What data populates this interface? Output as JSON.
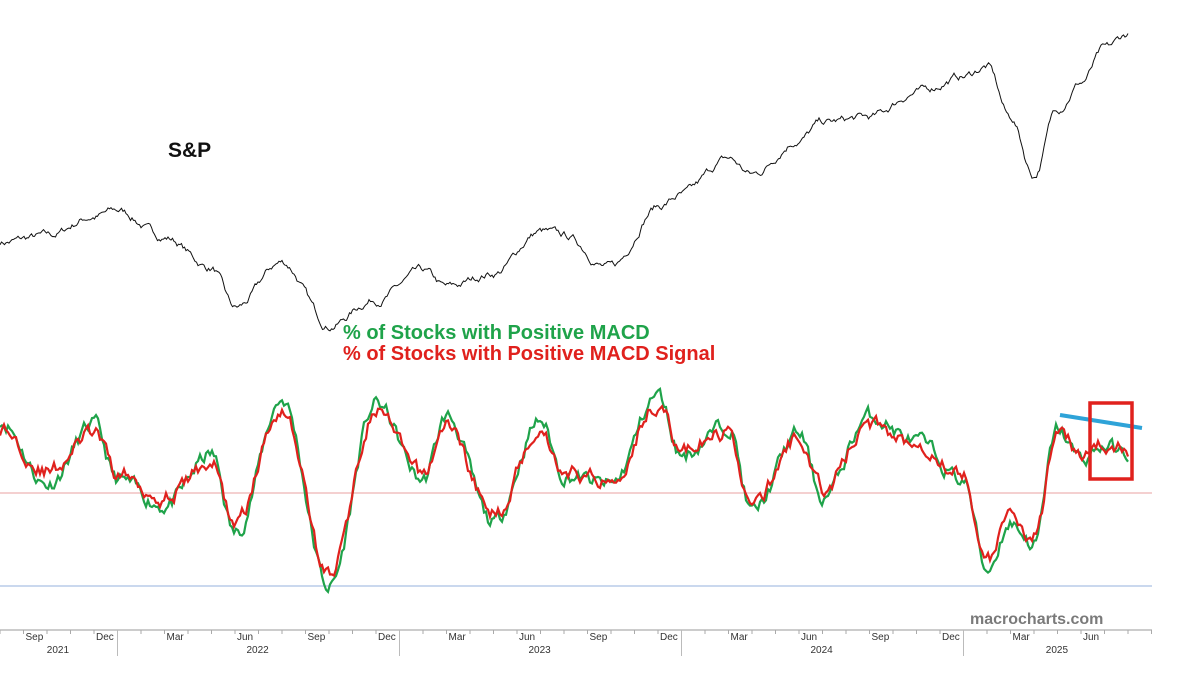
{
  "chart_data": [
    {
      "type": "line",
      "annotation": "S&P",
      "x": [
        "2021-08",
        "2021-10",
        "2021-12",
        "2022-01",
        "2022-03",
        "2022-05",
        "2022-06",
        "2022-08",
        "2022-10",
        "2022-12",
        "2023-02",
        "2023-03",
        "2023-05",
        "2023-07",
        "2023-08",
        "2023-10",
        "2023-12",
        "2024-01",
        "2024-03",
        "2024-04",
        "2024-06",
        "2024-07",
        "2024-09",
        "2024-11",
        "2025-01",
        "2025-02",
        "2025-03",
        "2025-04",
        "2025-05",
        "2025-06",
        "2025-07",
        "2025-08"
      ],
      "series": [
        {
          "values": [
            4400,
            4450,
            4650,
            4700,
            4450,
            4150,
            3750,
            4200,
            3600,
            3850,
            4100,
            3950,
            4100,
            4500,
            4450,
            4150,
            4750,
            4850,
            5200,
            5050,
            5400,
            5550,
            5600,
            5850,
            6000,
            6100,
            5600,
            5050,
            5700,
            5950,
            6250,
            6400
          ]
        }
      ]
    },
    {
      "type": "line",
      "series": [
        {
          "name": "% of Stocks with Positive MACD",
          "color": "#1fa34a",
          "values": [
            88,
            58,
            86,
            60,
            48,
            72,
            35,
            98,
            10,
            96,
            60,
            90,
            40,
            88,
            62,
            58,
            100,
            72,
            86,
            45,
            82,
            52,
            90,
            78,
            60,
            18,
            40,
            30,
            84,
            70,
            76,
            72
          ]
        },
        {
          "name": "% of Stocks with Positive MACD Signal",
          "color": "#e0211d",
          "values": [
            84,
            64,
            82,
            63,
            52,
            68,
            40,
            94,
            16,
            92,
            63,
            86,
            44,
            84,
            64,
            60,
            96,
            74,
            82,
            48,
            80,
            56,
            86,
            78,
            62,
            22,
            42,
            34,
            80,
            74,
            76,
            74
          ]
        }
      ],
      "reference_lines": [
        {
          "name": "upper",
          "color": "#e8a0a0"
        },
        {
          "name": "lower",
          "color": "#b8cbe8"
        }
      ],
      "annotation": "macrocharts.com"
    }
  ],
  "x_axis": {
    "months": [
      "Sep",
      "Dec",
      "Mar",
      "Jun",
      "Sep",
      "Dec",
      "Mar",
      "Jun",
      "Sep",
      "Dec",
      "Mar",
      "Jun",
      "Sep",
      "Dec",
      "Mar",
      "Jun"
    ],
    "years": [
      "2021",
      "2022",
      "2023",
      "2024",
      "2025"
    ]
  },
  "colors": {
    "sp_line": "#111111",
    "highlight_box": "#e0211d",
    "trend_line": "#2ea3d8"
  }
}
